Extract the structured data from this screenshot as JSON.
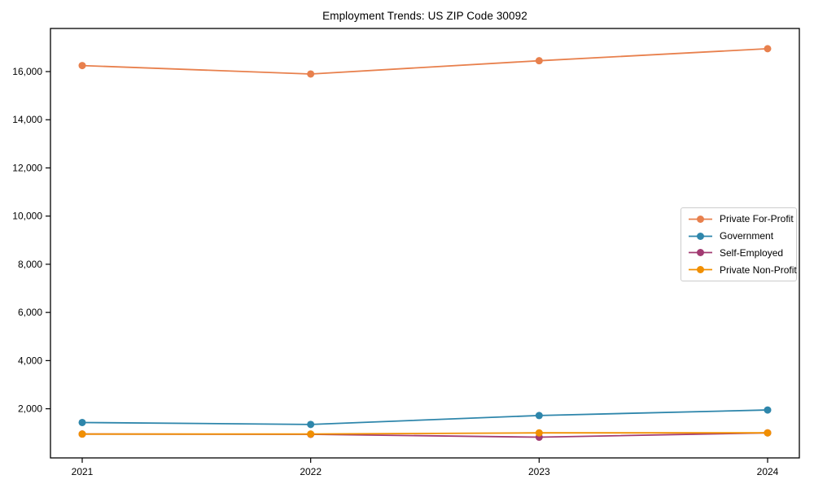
{
  "page": {
    "background_color": "#ffffff",
    "axis_color": "#000000",
    "text_color": "#000000"
  },
  "chart_data": {
    "type": "line",
    "title": "Employment Trends: US ZIP Code 30092",
    "categories": [
      "2021",
      "2022",
      "2023",
      "2024"
    ],
    "series": [
      {
        "name": "Private For-Profit",
        "color": "#E8804D",
        "values": [
          16250,
          15900,
          16450,
          16950
        ]
      },
      {
        "name": "Government",
        "color": "#2E86AB",
        "values": [
          1430,
          1350,
          1720,
          1950
        ]
      },
      {
        "name": "Self-Employed",
        "color": "#A23B72",
        "values": [
          950,
          940,
          820,
          1000
        ]
      },
      {
        "name": "Private Non-Profit",
        "color": "#F18F01",
        "values": [
          950,
          950,
          1000,
          1000
        ]
      }
    ],
    "xlabel": "",
    "ylabel": "",
    "ylim": [
      -40,
      17790
    ],
    "yticks": [
      {
        "value": 2000,
        "label": "2,000"
      },
      {
        "value": 4000,
        "label": "4,000"
      },
      {
        "value": 6000,
        "label": "6,000"
      },
      {
        "value": 8000,
        "label": "8,000"
      },
      {
        "value": 10000,
        "label": "10,000"
      },
      {
        "value": 12000,
        "label": "12,000"
      },
      {
        "value": 14000,
        "label": "14,000"
      },
      {
        "value": 16000,
        "label": "16,000"
      }
    ],
    "grid": false,
    "legend": {
      "position": "right-center",
      "border_color": "#cccccc",
      "background": "#ffffff"
    }
  }
}
